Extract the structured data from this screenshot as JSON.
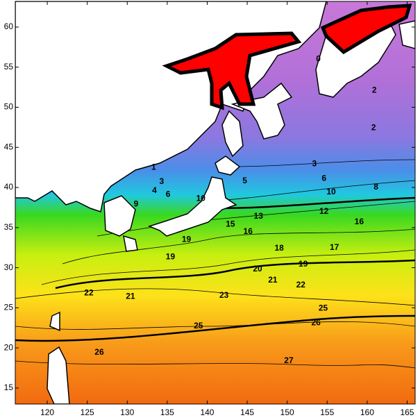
{
  "chart_data": {
    "type": "contour",
    "xlim": [
      116,
      166
    ],
    "ylim": [
      13,
      63.2
    ],
    "xticks": [
      120,
      125,
      130,
      135,
      140,
      145,
      150,
      155,
      160,
      165
    ],
    "yticks": [
      15,
      20,
      25,
      30,
      35,
      40,
      45,
      50,
      55,
      60
    ],
    "labels": [
      {
        "text": "0",
        "lon": 153.9,
        "lat": 56.0
      },
      {
        "text": "2",
        "lon": 160.9,
        "lat": 52.1
      },
      {
        "text": "2",
        "lon": 160.8,
        "lat": 47.4
      },
      {
        "text": "3",
        "lon": 153.4,
        "lat": 42.9
      },
      {
        "text": "1",
        "lon": 133.3,
        "lat": 42.5
      },
      {
        "text": "3",
        "lon": 134.3,
        "lat": 40.7
      },
      {
        "text": "4",
        "lon": 133.4,
        "lat": 39.6
      },
      {
        "text": "6",
        "lon": 135.1,
        "lat": 39.1
      },
      {
        "text": "5",
        "lon": 144.7,
        "lat": 40.8
      },
      {
        "text": "6",
        "lon": 154.6,
        "lat": 41.1
      },
      {
        "text": "8",
        "lon": 161.1,
        "lat": 40.0
      },
      {
        "text": "10",
        "lon": 155.5,
        "lat": 39.4
      },
      {
        "text": "9",
        "lon": 131.1,
        "lat": 37.9
      },
      {
        "text": "10",
        "lon": 139.2,
        "lat": 38.6
      },
      {
        "text": "12",
        "lon": 154.6,
        "lat": 37.0
      },
      {
        "text": "16",
        "lon": 159.0,
        "lat": 35.7
      },
      {
        "text": "15",
        "lon": 142.9,
        "lat": 35.4
      },
      {
        "text": "16",
        "lon": 145.1,
        "lat": 34.5
      },
      {
        "text": "13",
        "lon": 146.4,
        "lat": 36.4
      },
      {
        "text": "19",
        "lon": 137.4,
        "lat": 33.5
      },
      {
        "text": "18",
        "lon": 149.0,
        "lat": 32.4
      },
      {
        "text": "17",
        "lon": 155.9,
        "lat": 32.5
      },
      {
        "text": "19",
        "lon": 135.4,
        "lat": 31.3
      },
      {
        "text": "20",
        "lon": 146.3,
        "lat": 29.8
      },
      {
        "text": "19",
        "lon": 152.0,
        "lat": 30.4
      },
      {
        "text": "21",
        "lon": 148.2,
        "lat": 28.4
      },
      {
        "text": "22",
        "lon": 151.7,
        "lat": 27.8
      },
      {
        "text": "22",
        "lon": 125.2,
        "lat": 26.8
      },
      {
        "text": "21",
        "lon": 130.4,
        "lat": 26.4
      },
      {
        "text": "23",
        "lon": 142.1,
        "lat": 26.5
      },
      {
        "text": "25",
        "lon": 154.5,
        "lat": 24.9
      },
      {
        "text": "26",
        "lon": 153.6,
        "lat": 23.1
      },
      {
        "text": "25",
        "lon": 138.9,
        "lat": 22.7
      },
      {
        "text": "26",
        "lon": 126.5,
        "lat": 19.4
      },
      {
        "text": "27",
        "lon": 150.2,
        "lat": 18.4
      }
    ]
  }
}
